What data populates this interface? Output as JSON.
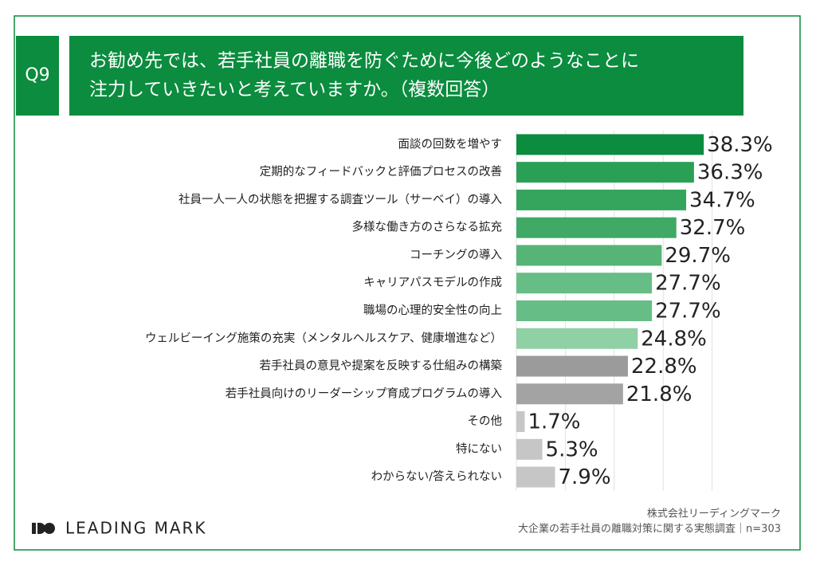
{
  "chart_data": {
    "type": "hbar",
    "question_label": "Q9",
    "title": [
      "お勧め先では、若手社員の離職を防ぐために今後どのようなことに",
      "注力していきたいと考えていますか。（複数回答）"
    ],
    "categories": [
      "面談の回数を増やす",
      "定期的なフィードバックと評価プロセスの改善",
      "社員一人一人の状態を把握する調査ツール（サーベイ）の導入",
      "多様な働き方のさらなる拡充",
      "コーチングの導入",
      "キャリアパスモデルの作成",
      "職場の心理的安全性の向上",
      "ウェルビーイング施策の充実（メンタルヘルスケア、健康増進など）",
      "若手社員の意見や提案を反映する仕組みの構築",
      "若手社員向けのリーダーシップ育成プログラムの導入",
      "その他",
      "特にない",
      "わからない/答えられない"
    ],
    "values": [
      38.3,
      36.3,
      34.7,
      32.7,
      29.7,
      27.7,
      27.7,
      24.8,
      22.8,
      21.8,
      1.7,
      5.3,
      7.9
    ],
    "value_labels": [
      "38.3%",
      "36.3%",
      "34.7%",
      "32.7%",
      "29.7%",
      "27.7%",
      "27.7%",
      "24.8%",
      "22.8%",
      "21.8%",
      "1.7%",
      "5.3%",
      "7.9%"
    ],
    "colors": [
      "#0b8c3e",
      "#2a9f56",
      "#35a55e",
      "#3fa965",
      "#55b476",
      "#66bd85",
      "#66bd85",
      "#8fd0a4",
      "#9b9b9b",
      "#a3a3a3",
      "#c6c6c6",
      "#c6c6c6",
      "#c6c6c6"
    ],
    "xlim": [
      0,
      40
    ],
    "xticks": [
      0,
      10,
      20,
      30,
      40
    ],
    "grid": true,
    "brand": "LEADING MARK",
    "source": [
      "株式会社リーディングマーク",
      "大企業の若手社員の離職対策に関する実態調査｜n=303"
    ]
  }
}
